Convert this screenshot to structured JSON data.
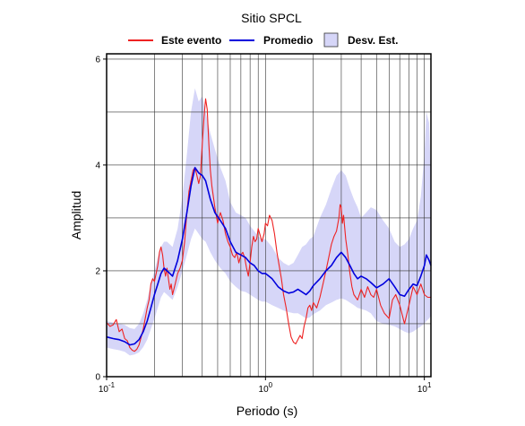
{
  "chart_data": {
    "type": "line",
    "title": "Sitio SPCL",
    "xlabel": "Periodo (s)",
    "ylabel": "Amplitud",
    "xscale": "log",
    "xlim": [
      0.1,
      11
    ],
    "ylim": [
      0,
      6.1
    ],
    "grid": true,
    "legend_position": "top",
    "x_ticks": [
      {
        "value": 0.1,
        "base": "10",
        "exp": "-1"
      },
      {
        "value": 1,
        "base": "10",
        "exp": "0"
      },
      {
        "value": 10,
        "base": "10",
        "exp": "1"
      }
    ],
    "y_ticks": [
      {
        "value": 0,
        "label": "0"
      },
      {
        "value": 2,
        "label": "2"
      },
      {
        "value": 4,
        "label": "4"
      },
      {
        "value": 6,
        "label": "6"
      }
    ],
    "legend": [
      {
        "label": "Este evento",
        "kind": "line",
        "color": "#ee2222"
      },
      {
        "label": "Promedio",
        "kind": "line",
        "color": "#0000dd"
      },
      {
        "label": "Desv. Est.",
        "kind": "band",
        "color": "#d6d6f8"
      }
    ],
    "series": [
      {
        "name": "Este evento",
        "color": "#ee2222",
        "points": [
          [
            0.1,
            1.02
          ],
          [
            0.105,
            0.95
          ],
          [
            0.11,
            0.98
          ],
          [
            0.115,
            1.08
          ],
          [
            0.12,
            0.85
          ],
          [
            0.125,
            0.9
          ],
          [
            0.13,
            0.72
          ],
          [
            0.135,
            0.68
          ],
          [
            0.14,
            0.55
          ],
          [
            0.145,
            0.5
          ],
          [
            0.15,
            0.48
          ],
          [
            0.155,
            0.52
          ],
          [
            0.16,
            0.6
          ],
          [
            0.165,
            0.75
          ],
          [
            0.17,
            0.9
          ],
          [
            0.175,
            1.1
          ],
          [
            0.18,
            1.3
          ],
          [
            0.185,
            1.45
          ],
          [
            0.19,
            1.75
          ],
          [
            0.195,
            1.85
          ],
          [
            0.2,
            1.8
          ],
          [
            0.205,
            1.95
          ],
          [
            0.21,
            2.1
          ],
          [
            0.215,
            2.35
          ],
          [
            0.22,
            2.45
          ],
          [
            0.225,
            2.3
          ],
          [
            0.23,
            2.05
          ],
          [
            0.235,
            1.9
          ],
          [
            0.24,
            2.05
          ],
          [
            0.245,
            1.85
          ],
          [
            0.25,
            1.65
          ],
          [
            0.255,
            1.75
          ],
          [
            0.26,
            1.55
          ],
          [
            0.27,
            1.75
          ],
          [
            0.28,
            1.95
          ],
          [
            0.29,
            2.05
          ],
          [
            0.3,
            2.2
          ],
          [
            0.31,
            2.55
          ],
          [
            0.32,
            3.1
          ],
          [
            0.33,
            3.5
          ],
          [
            0.34,
            3.7
          ],
          [
            0.35,
            3.9
          ],
          [
            0.36,
            3.95
          ],
          [
            0.37,
            3.8
          ],
          [
            0.38,
            3.65
          ],
          [
            0.39,
            3.8
          ],
          [
            0.4,
            4.4
          ],
          [
            0.41,
            4.9
          ],
          [
            0.42,
            5.25
          ],
          [
            0.43,
            5.05
          ],
          [
            0.44,
            4.4
          ],
          [
            0.45,
            3.9
          ],
          [
            0.46,
            3.6
          ],
          [
            0.48,
            3.2
          ],
          [
            0.5,
            2.9
          ],
          [
            0.52,
            3.1
          ],
          [
            0.54,
            2.95
          ],
          [
            0.56,
            2.7
          ],
          [
            0.58,
            2.55
          ],
          [
            0.6,
            2.45
          ],
          [
            0.62,
            2.3
          ],
          [
            0.64,
            2.25
          ],
          [
            0.66,
            2.35
          ],
          [
            0.68,
            2.15
          ],
          [
            0.7,
            2.3
          ],
          [
            0.72,
            2.35
          ],
          [
            0.74,
            2.25
          ],
          [
            0.76,
            2.05
          ],
          [
            0.78,
            1.9
          ],
          [
            0.8,
            2.15
          ],
          [
            0.82,
            2.45
          ],
          [
            0.84,
            2.65
          ],
          [
            0.86,
            2.55
          ],
          [
            0.88,
            2.6
          ],
          [
            0.9,
            2.8
          ],
          [
            0.92,
            2.7
          ],
          [
            0.95,
            2.55
          ],
          [
            0.98,
            2.7
          ],
          [
            1.0,
            2.9
          ],
          [
            1.03,
            2.85
          ],
          [
            1.06,
            3.05
          ],
          [
            1.1,
            2.95
          ],
          [
            1.14,
            2.7
          ],
          [
            1.18,
            2.35
          ],
          [
            1.22,
            2.1
          ],
          [
            1.26,
            1.85
          ],
          [
            1.3,
            1.55
          ],
          [
            1.35,
            1.3
          ],
          [
            1.4,
            1.0
          ],
          [
            1.45,
            0.75
          ],
          [
            1.5,
            0.65
          ],
          [
            1.55,
            0.62
          ],
          [
            1.6,
            0.7
          ],
          [
            1.65,
            0.78
          ],
          [
            1.7,
            0.72
          ],
          [
            1.75,
            0.95
          ],
          [
            1.8,
            1.1
          ],
          [
            1.85,
            1.3
          ],
          [
            1.9,
            1.35
          ],
          [
            1.95,
            1.25
          ],
          [
            2.0,
            1.4
          ],
          [
            2.1,
            1.3
          ],
          [
            2.2,
            1.5
          ],
          [
            2.3,
            1.75
          ],
          [
            2.4,
            2.0
          ],
          [
            2.5,
            2.25
          ],
          [
            2.6,
            2.5
          ],
          [
            2.7,
            2.65
          ],
          [
            2.8,
            2.75
          ],
          [
            2.9,
            3.0
          ],
          [
            2.95,
            3.25
          ],
          [
            3.0,
            3.2
          ],
          [
            3.05,
            2.9
          ],
          [
            3.1,
            3.05
          ],
          [
            3.2,
            2.6
          ],
          [
            3.3,
            2.3
          ],
          [
            3.4,
            1.95
          ],
          [
            3.5,
            1.7
          ],
          [
            3.6,
            1.55
          ],
          [
            3.8,
            1.45
          ],
          [
            4.0,
            1.65
          ],
          [
            4.2,
            1.5
          ],
          [
            4.4,
            1.7
          ],
          [
            4.6,
            1.55
          ],
          [
            4.8,
            1.5
          ],
          [
            5.0,
            1.65
          ],
          [
            5.3,
            1.35
          ],
          [
            5.6,
            1.2
          ],
          [
            6.0,
            1.1
          ],
          [
            6.3,
            1.45
          ],
          [
            6.6,
            1.55
          ],
          [
            7.0,
            1.35
          ],
          [
            7.5,
            1.0
          ],
          [
            8.0,
            1.35
          ],
          [
            8.5,
            1.7
          ],
          [
            9.0,
            1.55
          ],
          [
            9.5,
            1.75
          ],
          [
            10.0,
            1.55
          ],
          [
            10.5,
            1.5
          ],
          [
            11.0,
            1.5
          ]
        ]
      },
      {
        "name": "Promedio",
        "color": "#0000dd",
        "points": [
          [
            0.1,
            0.75
          ],
          [
            0.11,
            0.72
          ],
          [
            0.12,
            0.7
          ],
          [
            0.13,
            0.66
          ],
          [
            0.14,
            0.6
          ],
          [
            0.15,
            0.62
          ],
          [
            0.16,
            0.7
          ],
          [
            0.17,
            0.85
          ],
          [
            0.18,
            1.05
          ],
          [
            0.19,
            1.3
          ],
          [
            0.2,
            1.55
          ],
          [
            0.21,
            1.75
          ],
          [
            0.22,
            1.95
          ],
          [
            0.23,
            2.05
          ],
          [
            0.24,
            2.0
          ],
          [
            0.25,
            1.95
          ],
          [
            0.26,
            1.9
          ],
          [
            0.28,
            2.2
          ],
          [
            0.3,
            2.6
          ],
          [
            0.32,
            3.1
          ],
          [
            0.34,
            3.6
          ],
          [
            0.36,
            3.95
          ],
          [
            0.38,
            3.85
          ],
          [
            0.4,
            3.8
          ],
          [
            0.42,
            3.7
          ],
          [
            0.45,
            3.35
          ],
          [
            0.48,
            3.1
          ],
          [
            0.52,
            2.95
          ],
          [
            0.56,
            2.8
          ],
          [
            0.6,
            2.55
          ],
          [
            0.65,
            2.35
          ],
          [
            0.7,
            2.3
          ],
          [
            0.75,
            2.25
          ],
          [
            0.8,
            2.15
          ],
          [
            0.85,
            2.1
          ],
          [
            0.9,
            2.0
          ],
          [
            0.95,
            1.95
          ],
          [
            1.0,
            1.95
          ],
          [
            1.1,
            1.85
          ],
          [
            1.2,
            1.7
          ],
          [
            1.3,
            1.62
          ],
          [
            1.4,
            1.58
          ],
          [
            1.5,
            1.6
          ],
          [
            1.6,
            1.65
          ],
          [
            1.7,
            1.6
          ],
          [
            1.8,
            1.55
          ],
          [
            1.9,
            1.62
          ],
          [
            2.0,
            1.72
          ],
          [
            2.2,
            1.85
          ],
          [
            2.4,
            2.0
          ],
          [
            2.6,
            2.1
          ],
          [
            2.8,
            2.25
          ],
          [
            3.0,
            2.35
          ],
          [
            3.2,
            2.25
          ],
          [
            3.4,
            2.1
          ],
          [
            3.6,
            1.95
          ],
          [
            3.8,
            1.85
          ],
          [
            4.0,
            1.9
          ],
          [
            4.3,
            1.85
          ],
          [
            4.6,
            1.78
          ],
          [
            5.0,
            1.68
          ],
          [
            5.5,
            1.75
          ],
          [
            6.0,
            1.85
          ],
          [
            6.5,
            1.7
          ],
          [
            7.0,
            1.55
          ],
          [
            7.5,
            1.52
          ],
          [
            8.0,
            1.65
          ],
          [
            8.5,
            1.75
          ],
          [
            9.0,
            1.72
          ],
          [
            9.5,
            1.9
          ],
          [
            10.0,
            2.1
          ],
          [
            10.3,
            2.3
          ],
          [
            10.7,
            2.2
          ],
          [
            11.0,
            2.1
          ]
        ]
      }
    ],
    "band": {
      "name": "Desv. Est.",
      "color": "#d6d6f8",
      "x": [
        0.1,
        0.11,
        0.12,
        0.13,
        0.14,
        0.15,
        0.16,
        0.17,
        0.18,
        0.19,
        0.2,
        0.21,
        0.22,
        0.23,
        0.24,
        0.25,
        0.26,
        0.28,
        0.3,
        0.32,
        0.34,
        0.36,
        0.38,
        0.4,
        0.42,
        0.45,
        0.48,
        0.52,
        0.56,
        0.6,
        0.65,
        0.7,
        0.75,
        0.8,
        0.85,
        0.9,
        0.95,
        1.0,
        1.1,
        1.2,
        1.3,
        1.4,
        1.5,
        1.6,
        1.7,
        1.8,
        1.9,
        2.0,
        2.2,
        2.4,
        2.6,
        2.8,
        3.0,
        3.2,
        3.4,
        3.6,
        3.8,
        4.0,
        4.3,
        4.6,
        5.0,
        5.5,
        6.0,
        6.5,
        7.0,
        7.5,
        8.0,
        8.5,
        9.0,
        9.5,
        10.0,
        10.3,
        10.7,
        11.0
      ],
      "upper": [
        1.05,
        1.02,
        1.0,
        0.98,
        0.92,
        0.9,
        1.0,
        1.2,
        1.45,
        1.75,
        2.0,
        2.25,
        2.45,
        2.55,
        2.55,
        2.5,
        2.45,
        2.8,
        3.4,
        4.2,
        5.0,
        5.45,
        5.2,
        5.3,
        5.0,
        4.6,
        4.3,
        3.95,
        3.7,
        3.3,
        3.1,
        3.05,
        3.0,
        2.85,
        2.75,
        2.65,
        2.6,
        2.6,
        2.45,
        2.25,
        2.15,
        2.1,
        2.15,
        2.3,
        2.45,
        2.5,
        2.6,
        2.65,
        3.0,
        3.25,
        3.55,
        3.8,
        3.9,
        3.8,
        3.55,
        3.35,
        3.2,
        3.0,
        3.1,
        3.2,
        3.15,
        2.95,
        2.8,
        2.55,
        2.45,
        2.5,
        2.6,
        2.8,
        2.95,
        3.4,
        4.2,
        5.0,
        4.8,
        3.7
      ],
      "lower": [
        0.55,
        0.52,
        0.5,
        0.47,
        0.4,
        0.42,
        0.46,
        0.56,
        0.7,
        0.9,
        1.1,
        1.3,
        1.5,
        1.6,
        1.55,
        1.5,
        1.45,
        1.7,
        2.0,
        2.3,
        2.6,
        2.8,
        2.7,
        2.6,
        2.55,
        2.35,
        2.2,
        2.05,
        1.95,
        1.8,
        1.7,
        1.62,
        1.6,
        1.55,
        1.5,
        1.45,
        1.42,
        1.42,
        1.35,
        1.3,
        1.25,
        1.22,
        1.2,
        1.2,
        1.15,
        1.1,
        1.12,
        1.18,
        1.25,
        1.35,
        1.4,
        1.45,
        1.48,
        1.45,
        1.4,
        1.35,
        1.3,
        1.28,
        1.25,
        1.2,
        1.05,
        1.0,
        0.98,
        0.95,
        0.9,
        0.85,
        0.82,
        0.85,
        0.9,
        0.95,
        1.0,
        1.05,
        1.1,
        1.15
      ]
    }
  }
}
